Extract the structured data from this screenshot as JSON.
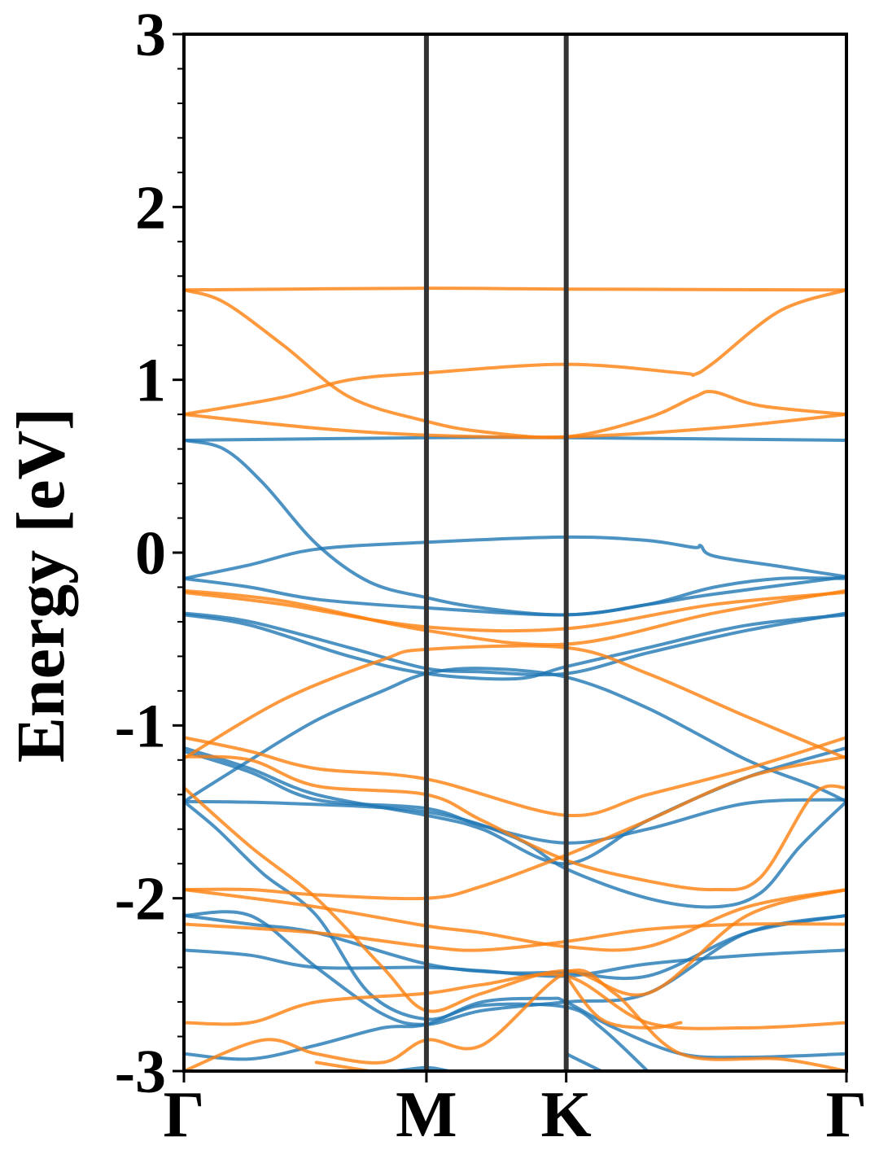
{
  "chart_data": {
    "type": "line",
    "title": "",
    "xlabel": "",
    "ylabel": "Energy [eV]",
    "ylim": [
      -3,
      3
    ],
    "yticks": [
      "3",
      "2",
      "1",
      "0",
      "-1",
      "-2",
      "-3"
    ],
    "k_points": [
      {
        "label": "Γ",
        "x": 0.0
      },
      {
        "label": "M",
        "x": 0.366
      },
      {
        "label": "K",
        "x": 0.577
      },
      {
        "label": "Γ",
        "x": 1.0
      }
    ],
    "grid": false,
    "legend": "none",
    "colors": {
      "blue": "#1f77b4",
      "orange": "#ff7f0e",
      "kline": "#333333"
    },
    "series": [
      {
        "color": "blue",
        "points": [
          [
            0,
            0.65
          ],
          [
            0.366,
            0.665
          ],
          [
            0.577,
            0.665
          ],
          [
            1,
            0.65
          ]
        ]
      },
      {
        "color": "blue",
        "points": [
          [
            0,
            0.65
          ],
          [
            0.06,
            0.6
          ],
          [
            0.12,
            0.4
          ],
          [
            0.2,
            0.05
          ],
          [
            0.28,
            -0.17
          ],
          [
            0.366,
            -0.26
          ],
          [
            0.45,
            -0.32
          ],
          [
            0.577,
            -0.36
          ],
          [
            0.7,
            -0.3
          ],
          [
            0.8,
            -0.2
          ],
          [
            0.9,
            -0.15
          ],
          [
            1,
            -0.15
          ]
        ]
      },
      {
        "color": "blue",
        "points": [
          [
            0,
            -0.15
          ],
          [
            0.1,
            -0.07
          ],
          [
            0.2,
            0.02
          ],
          [
            0.366,
            0.06
          ],
          [
            0.577,
            0.09
          ],
          [
            0.7,
            0.07
          ],
          [
            0.77,
            0.03
          ],
          [
            0.78,
            0.04
          ],
          [
            0.8,
            -0.02
          ],
          [
            0.9,
            -0.08
          ],
          [
            1,
            -0.14
          ]
        ]
      },
      {
        "color": "blue",
        "points": [
          [
            0,
            -0.15
          ],
          [
            0.1,
            -0.2
          ],
          [
            0.2,
            -0.27
          ],
          [
            0.366,
            -0.32
          ],
          [
            0.577,
            -0.36
          ],
          [
            0.7,
            -0.3
          ],
          [
            0.8,
            -0.24
          ],
          [
            1,
            -0.14
          ]
        ]
      },
      {
        "color": "blue",
        "points": [
          [
            0,
            -0.35
          ],
          [
            0.1,
            -0.4
          ],
          [
            0.25,
            -0.55
          ],
          [
            0.366,
            -0.67
          ],
          [
            0.45,
            -0.69
          ],
          [
            0.577,
            -0.7
          ],
          [
            0.7,
            -0.58
          ],
          [
            0.85,
            -0.45
          ],
          [
            1,
            -0.35
          ]
        ]
      },
      {
        "color": "blue",
        "points": [
          [
            0,
            -0.36
          ],
          [
            0.1,
            -0.42
          ],
          [
            0.25,
            -0.6
          ],
          [
            0.366,
            -0.7
          ],
          [
            0.5,
            -0.73
          ],
          [
            0.577,
            -0.66
          ],
          [
            0.7,
            -0.55
          ],
          [
            0.85,
            -0.42
          ],
          [
            1,
            -0.36
          ]
        ]
      },
      {
        "color": "blue",
        "points": [
          [
            0,
            -1.44
          ],
          [
            0.1,
            -1.2
          ],
          [
            0.2,
            -0.97
          ],
          [
            0.3,
            -0.8
          ],
          [
            0.366,
            -0.7
          ],
          [
            0.45,
            -0.67
          ],
          [
            0.577,
            -0.72
          ],
          [
            0.7,
            -0.9
          ],
          [
            0.85,
            -1.2
          ],
          [
            0.95,
            -1.35
          ],
          [
            1,
            -1.44
          ]
        ]
      },
      {
        "color": "blue",
        "points": [
          [
            0,
            -1.13
          ],
          [
            0.1,
            -1.25
          ],
          [
            0.2,
            -1.4
          ],
          [
            0.366,
            -1.52
          ],
          [
            0.45,
            -1.6
          ],
          [
            0.577,
            -1.8
          ],
          [
            0.7,
            -1.55
          ],
          [
            0.85,
            -1.3
          ],
          [
            1,
            -1.13
          ]
        ]
      },
      {
        "color": "blue",
        "points": [
          [
            0,
            -1.15
          ],
          [
            0.1,
            -1.27
          ],
          [
            0.2,
            -1.43
          ],
          [
            0.366,
            -1.48
          ],
          [
            0.45,
            -1.58
          ],
          [
            0.577,
            -1.68
          ],
          [
            0.7,
            -1.6
          ],
          [
            0.85,
            -1.45
          ],
          [
            1,
            -1.43
          ]
        ]
      },
      {
        "color": "blue",
        "points": [
          [
            0,
            -1.44
          ],
          [
            0.15,
            -1.45
          ],
          [
            0.366,
            -1.5
          ],
          [
            0.5,
            -1.65
          ],
          [
            0.577,
            -1.83
          ],
          [
            0.7,
            -2.0
          ],
          [
            0.8,
            -2.05
          ],
          [
            0.87,
            -1.97
          ],
          [
            0.93,
            -1.7
          ],
          [
            1,
            -1.44
          ]
        ]
      },
      {
        "color": "blue",
        "points": [
          [
            0,
            -2.1
          ],
          [
            0.1,
            -2.1
          ],
          [
            0.2,
            -2.4
          ],
          [
            0.3,
            -2.67
          ],
          [
            0.366,
            -2.73
          ],
          [
            0.45,
            -2.65
          ],
          [
            0.577,
            -2.6
          ],
          [
            0.7,
            -2.55
          ],
          [
            0.85,
            -2.2
          ],
          [
            1,
            -2.1
          ]
        ]
      },
      {
        "color": "blue",
        "points": [
          [
            0,
            -2.3
          ],
          [
            0.1,
            -2.33
          ],
          [
            0.2,
            -2.4
          ],
          [
            0.366,
            -2.4
          ],
          [
            0.45,
            -2.42
          ],
          [
            0.577,
            -2.45
          ],
          [
            0.7,
            -2.38
          ],
          [
            0.85,
            -2.33
          ],
          [
            1,
            -2.3
          ]
        ]
      },
      {
        "color": "blue",
        "points": [
          [
            0,
            -1.44
          ],
          [
            0.05,
            -1.6
          ],
          [
            0.12,
            -1.86
          ],
          [
            0.2,
            -2.1
          ],
          [
            0.28,
            -2.55
          ],
          [
            0.366,
            -2.7
          ],
          [
            0.45,
            -2.62
          ],
          [
            0.577,
            -2.63
          ],
          [
            0.63,
            -2.75
          ],
          [
            0.7,
            -3.0
          ]
        ]
      },
      {
        "color": "blue",
        "points": [
          [
            0,
            -2.1
          ],
          [
            0.1,
            -2.15
          ],
          [
            0.2,
            -2.2
          ],
          [
            0.366,
            -2.38
          ],
          [
            0.48,
            -2.43
          ],
          [
            0.577,
            -2.43
          ],
          [
            0.7,
            -2.45
          ],
          [
            0.85,
            -2.2
          ],
          [
            1,
            -2.1
          ]
        ]
      },
      {
        "color": "blue",
        "points": [
          [
            0,
            -2.9
          ],
          [
            0.1,
            -2.93
          ],
          [
            0.2,
            -2.85
          ],
          [
            0.3,
            -2.75
          ],
          [
            0.366,
            -2.73
          ],
          [
            0.45,
            -2.6
          ],
          [
            0.55,
            -2.58
          ],
          [
            0.577,
            -2.6
          ],
          [
            0.65,
            -2.75
          ],
          [
            0.75,
            -2.9
          ],
          [
            0.85,
            -2.92
          ],
          [
            1,
            -2.9
          ]
        ]
      },
      {
        "color": "blue",
        "points": [
          [
            0.32,
            -3.0
          ],
          [
            0.366,
            -2.98
          ],
          [
            0.4,
            -3.0
          ]
        ]
      },
      {
        "color": "blue",
        "points": [
          [
            0.577,
            -2.9
          ],
          [
            0.63,
            -3.0
          ]
        ]
      },
      {
        "color": "orange",
        "points": [
          [
            0,
            1.52
          ],
          [
            0.366,
            1.53
          ],
          [
            0.577,
            1.525
          ],
          [
            1,
            1.52
          ]
        ]
      },
      {
        "color": "orange",
        "points": [
          [
            0,
            1.52
          ],
          [
            0.06,
            1.45
          ],
          [
            0.15,
            1.2
          ],
          [
            0.25,
            0.9
          ],
          [
            0.366,
            0.76
          ],
          [
            0.45,
            0.7
          ],
          [
            0.577,
            0.67
          ],
          [
            0.7,
            0.78
          ],
          [
            0.77,
            0.9
          ],
          [
            0.8,
            0.93
          ],
          [
            0.87,
            0.85
          ],
          [
            1,
            0.8
          ]
        ]
      },
      {
        "color": "orange",
        "points": [
          [
            0,
            0.8
          ],
          [
            0.15,
            0.9
          ],
          [
            0.25,
            1.0
          ],
          [
            0.366,
            1.04
          ],
          [
            0.577,
            1.09
          ],
          [
            0.75,
            1.04
          ],
          [
            0.77,
            1.03
          ],
          [
            0.8,
            1.1
          ],
          [
            0.9,
            1.4
          ],
          [
            1,
            1.52
          ]
        ]
      },
      {
        "color": "orange",
        "points": [
          [
            0,
            0.8
          ],
          [
            0.2,
            0.72
          ],
          [
            0.366,
            0.68
          ],
          [
            0.577,
            0.67
          ],
          [
            0.8,
            0.72
          ],
          [
            1,
            0.8
          ]
        ]
      },
      {
        "color": "orange",
        "points": [
          [
            0,
            -0.22
          ],
          [
            0.15,
            -0.28
          ],
          [
            0.366,
            -0.45
          ],
          [
            0.577,
            -0.53
          ],
          [
            0.8,
            -0.35
          ],
          [
            1,
            -0.22
          ]
        ]
      },
      {
        "color": "orange",
        "points": [
          [
            0,
            -0.23
          ],
          [
            0.15,
            -0.3
          ],
          [
            0.366,
            -0.43
          ],
          [
            0.577,
            -0.44
          ],
          [
            0.8,
            -0.3
          ],
          [
            1,
            -0.23
          ]
        ]
      },
      {
        "color": "orange",
        "points": [
          [
            0,
            -1.19
          ],
          [
            0.15,
            -0.85
          ],
          [
            0.3,
            -0.62
          ],
          [
            0.366,
            -0.56
          ],
          [
            0.577,
            -0.55
          ],
          [
            0.7,
            -0.7
          ],
          [
            0.85,
            -0.95
          ],
          [
            1,
            -1.19
          ]
        ]
      },
      {
        "color": "orange",
        "points": [
          [
            0,
            -1.07
          ],
          [
            0.1,
            -1.15
          ],
          [
            0.2,
            -1.25
          ],
          [
            0.366,
            -1.31
          ],
          [
            0.577,
            -1.52
          ],
          [
            0.7,
            -1.4
          ],
          [
            0.85,
            -1.25
          ],
          [
            1,
            -1.07
          ]
        ]
      },
      {
        "color": "orange",
        "points": [
          [
            0,
            -1.18
          ],
          [
            0.1,
            -1.2
          ],
          [
            0.2,
            -1.35
          ],
          [
            0.366,
            -1.4
          ],
          [
            0.45,
            -1.55
          ],
          [
            0.577,
            -1.78
          ],
          [
            0.7,
            -1.9
          ],
          [
            0.8,
            -1.95
          ],
          [
            0.87,
            -1.88
          ],
          [
            0.95,
            -1.4
          ],
          [
            1,
            -1.36
          ]
        ]
      },
      {
        "color": "orange",
        "points": [
          [
            0,
            -1.36
          ],
          [
            0.1,
            -1.7
          ],
          [
            0.2,
            -2.0
          ],
          [
            0.3,
            -2.4
          ],
          [
            0.366,
            -2.65
          ],
          [
            0.45,
            -2.55
          ],
          [
            0.577,
            -2.42
          ],
          [
            0.7,
            -2.55
          ],
          [
            0.85,
            -2.1
          ],
          [
            1,
            -1.95
          ]
        ]
      },
      {
        "color": "orange",
        "points": [
          [
            0,
            -1.95
          ],
          [
            0.1,
            -1.95
          ],
          [
            0.2,
            -1.98
          ],
          [
            0.366,
            -2.0
          ],
          [
            0.45,
            -1.93
          ],
          [
            0.577,
            -1.75
          ],
          [
            0.7,
            -1.55
          ],
          [
            0.85,
            -1.3
          ],
          [
            1,
            -1.18
          ]
        ]
      },
      {
        "color": "orange",
        "points": [
          [
            0,
            -2.15
          ],
          [
            0.2,
            -2.2
          ],
          [
            0.366,
            -2.28
          ],
          [
            0.45,
            -2.3
          ],
          [
            0.577,
            -2.25
          ],
          [
            0.7,
            -2.18
          ],
          [
            0.85,
            -2.15
          ],
          [
            1,
            -2.15
          ]
        ]
      },
      {
        "color": "orange",
        "points": [
          [
            0,
            -1.95
          ],
          [
            0.2,
            -2.05
          ],
          [
            0.366,
            -2.16
          ],
          [
            0.45,
            -2.2
          ],
          [
            0.577,
            -2.28
          ],
          [
            0.7,
            -2.28
          ],
          [
            0.85,
            -2.05
          ],
          [
            1,
            -1.95
          ]
        ]
      },
      {
        "color": "orange",
        "points": [
          [
            0,
            -2.72
          ],
          [
            0.1,
            -2.72
          ],
          [
            0.2,
            -2.6
          ],
          [
            0.366,
            -2.55
          ],
          [
            0.45,
            -2.5
          ],
          [
            0.577,
            -2.45
          ],
          [
            0.7,
            -2.72
          ],
          [
            0.85,
            -2.75
          ],
          [
            1,
            -2.72
          ]
        ]
      },
      {
        "color": "orange",
        "points": [
          [
            0,
            -3.0
          ],
          [
            0.12,
            -2.82
          ],
          [
            0.2,
            -2.9
          ],
          [
            0.3,
            -2.95
          ],
          [
            0.366,
            -2.82
          ],
          [
            0.45,
            -2.85
          ],
          [
            0.577,
            -2.43
          ],
          [
            0.65,
            -2.55
          ],
          [
            0.75,
            -2.9
          ],
          [
            0.9,
            -2.93
          ],
          [
            1,
            -3.0
          ]
        ]
      },
      {
        "color": "orange",
        "points": [
          [
            0.2,
            -2.95
          ],
          [
            0.28,
            -3.0
          ]
        ]
      },
      {
        "color": "orange",
        "points": [
          [
            0.577,
            -2.45
          ],
          [
            0.63,
            -2.7
          ],
          [
            0.7,
            -2.75
          ],
          [
            0.75,
            -2.72
          ]
        ]
      }
    ]
  }
}
